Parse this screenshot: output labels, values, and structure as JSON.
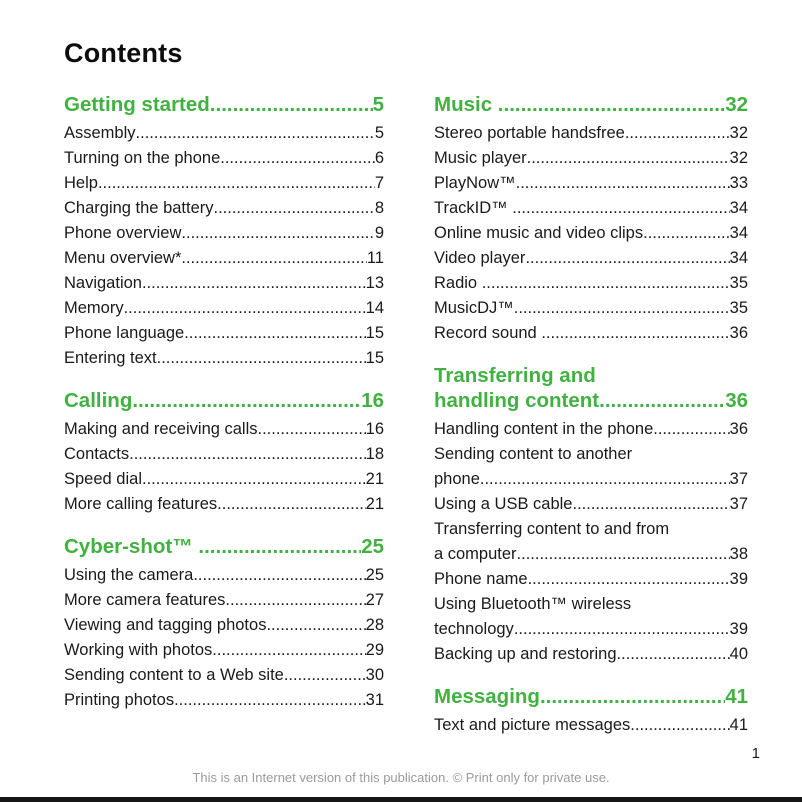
{
  "page": {
    "title": "Contents",
    "page_number": "1",
    "footer": "This is an Internet version of this publication. © Print only for private use.",
    "accent_color": "#41b141",
    "text_color": "#1a1a1a",
    "footer_color": "#9a9a9a",
    "bottom_bar_color": "#161616"
  },
  "columns": [
    {
      "sections": [
        {
          "title": "Getting started",
          "page": "5",
          "entries": [
            {
              "label": "Assembly",
              "page": "5"
            },
            {
              "label": "Turning on the phone",
              "page": "6"
            },
            {
              "label": "Help",
              "page": "7"
            },
            {
              "label": "Charging the battery",
              "page": "8"
            },
            {
              "label": "Phone overview",
              "page": "9"
            },
            {
              "label": "Menu overview*",
              "page": "11"
            },
            {
              "label": "Navigation",
              "page": "13"
            },
            {
              "label": "Memory",
              "page": "14"
            },
            {
              "label": "Phone language",
              "page": "15"
            },
            {
              "label": "Entering text",
              "page": "15"
            }
          ]
        },
        {
          "title": "Calling",
          "page": "16",
          "entries": [
            {
              "label": "Making and receiving calls",
              "page": "16"
            },
            {
              "label": "Contacts",
              "page": "18"
            },
            {
              "label": "Speed dial",
              "page": "21"
            },
            {
              "label": "More calling features",
              "page": "21"
            }
          ]
        },
        {
          "title": "Cyber-shot™ ",
          "page": "25",
          "entries": [
            {
              "label": "Using the camera",
              "page": "25"
            },
            {
              "label": "More camera features",
              "page": "27"
            },
            {
              "label": "Viewing and tagging photos",
              "page": "28"
            },
            {
              "label": "Working with photos",
              "page": "29"
            },
            {
              "label": "Sending content to a Web site",
              "page": "30"
            },
            {
              "label": "Printing photos",
              "page": "31"
            }
          ]
        }
      ]
    },
    {
      "sections": [
        {
          "title": "Music ",
          "page": "32",
          "entries": [
            {
              "label": "Stereo portable handsfree",
              "page": "32"
            },
            {
              "label": "Music player",
              "page": "32"
            },
            {
              "label": "PlayNow™",
              "page": "33"
            },
            {
              "label": "TrackID™ ",
              "page": "34"
            },
            {
              "label": "Online music and video clips",
              "page": "34"
            },
            {
              "label": "Video player",
              "page": "34"
            },
            {
              "label": "Radio ",
              "page": "35"
            },
            {
              "label": "MusicDJ™",
              "page": "35"
            },
            {
              "label": "Record sound ",
              "page": "36"
            }
          ]
        },
        {
          "title_pre": "Transferring and",
          "title": "handling content",
          "page": "36",
          "entries": [
            {
              "label": "Handling content in the phone",
              "page": "36"
            },
            {
              "pre": "Sending content to another",
              "label": "phone",
              "page": "37"
            },
            {
              "label": "Using a USB cable",
              "page": "37"
            },
            {
              "pre": "Transferring content to and from",
              "label": "a computer",
              "page": "38"
            },
            {
              "label": "Phone name",
              "page": "39"
            },
            {
              "pre": "Using Bluetooth™ wireless",
              "label": "technology",
              "page": "39"
            },
            {
              "label": "Backing up and restoring",
              "page": "40"
            }
          ]
        },
        {
          "title": "Messaging",
          "page": "41",
          "entries": [
            {
              "label": "Text and picture messages",
              "page": "41"
            }
          ]
        }
      ]
    }
  ]
}
